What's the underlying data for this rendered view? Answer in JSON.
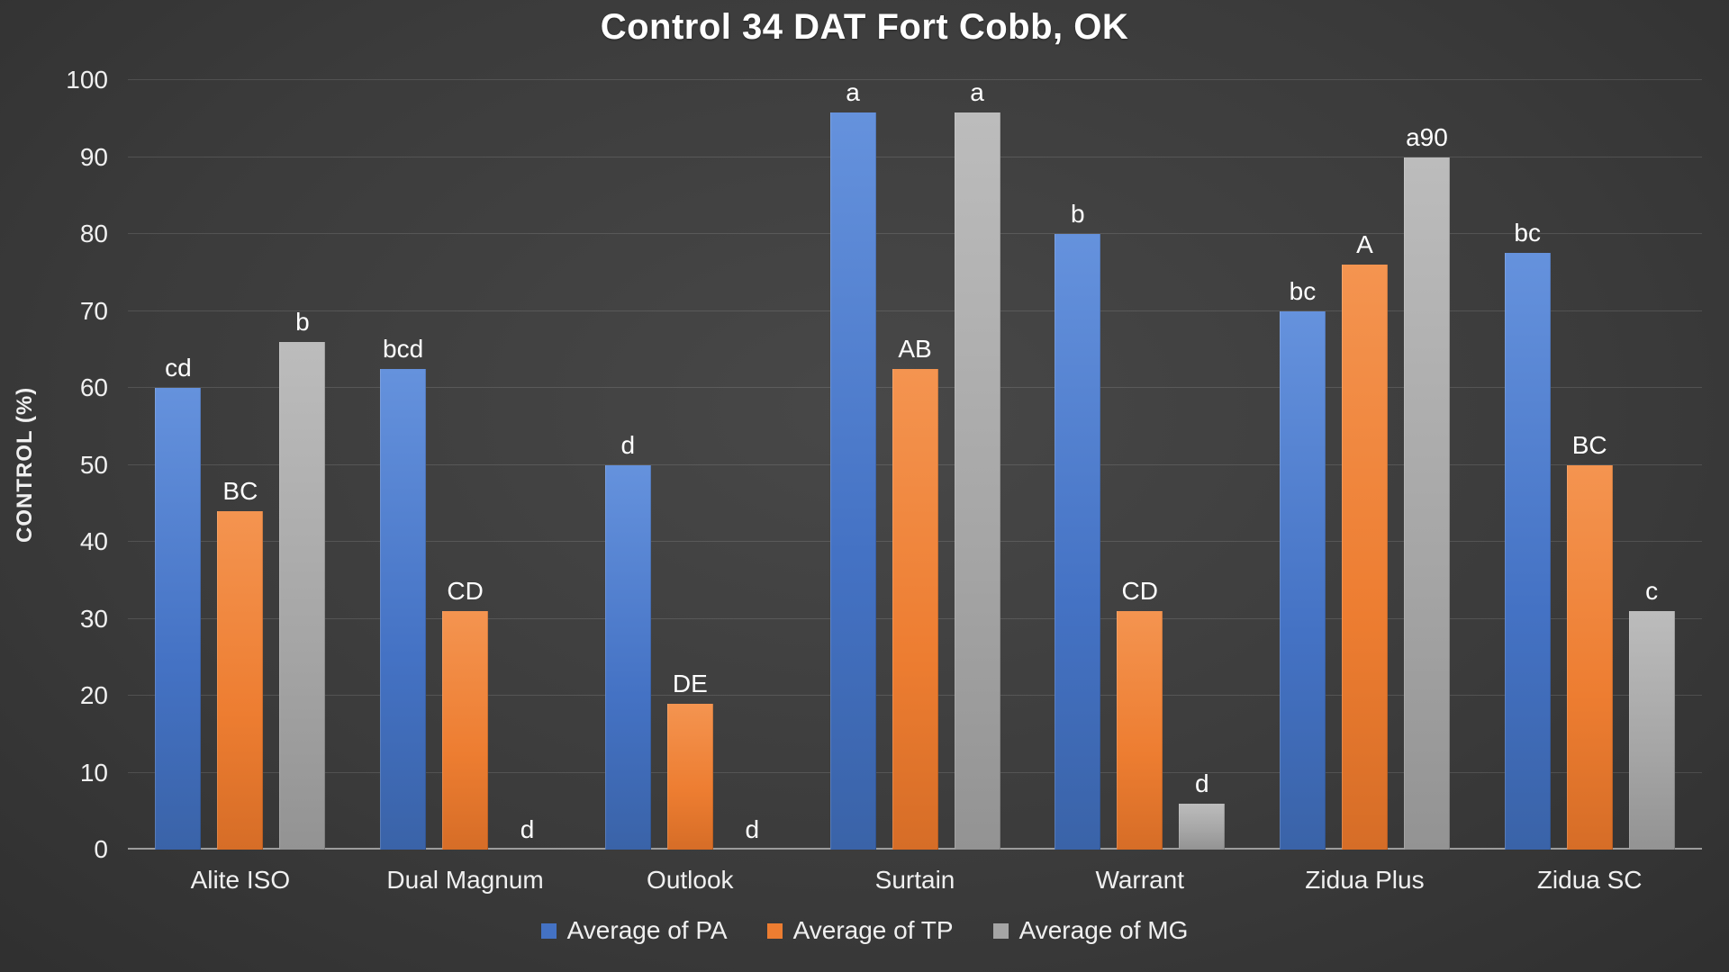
{
  "chart_data": {
    "type": "bar",
    "title": "Control 34 DAT Fort Cobb, OK",
    "ylabel": "CONTROL (%)",
    "ylim": [
      0,
      100
    ],
    "ytick_interval": 10,
    "grid": true,
    "legend_position": "bottom",
    "categories": [
      "Alite ISO",
      "Dual Magnum",
      "Outlook",
      "Surtain",
      "Warrant",
      "Zidua Plus",
      "Zidua SC"
    ],
    "series": [
      {
        "name": "Average of PA",
        "color": "#4472C4",
        "color_light": "#6592dd",
        "color_dark": "#3a63a8",
        "values": [
          60,
          62.5,
          50,
          100,
          80,
          70,
          77.5
        ],
        "labels": [
          "cd",
          "bcd",
          "d",
          "a",
          "b",
          "bc",
          "bc"
        ]
      },
      {
        "name": "Average of TP",
        "color": "#ED7D31",
        "color_light": "#f49450",
        "color_dark": "#d66d27",
        "values": [
          44,
          31,
          19,
          62.5,
          31,
          76,
          50
        ],
        "labels": [
          "BC",
          "CD",
          "DE",
          "AB",
          "CD",
          "A",
          "BC"
        ]
      },
      {
        "name": "Average of MG",
        "color": "#A5A5A5",
        "color_light": "#bcbcbc",
        "color_dark": "#939393",
        "values": [
          66,
          0,
          0,
          100,
          6,
          90,
          31
        ],
        "labels": [
          "b",
          "d",
          "d",
          "a",
          "d",
          "a90",
          "c"
        ]
      }
    ]
  }
}
